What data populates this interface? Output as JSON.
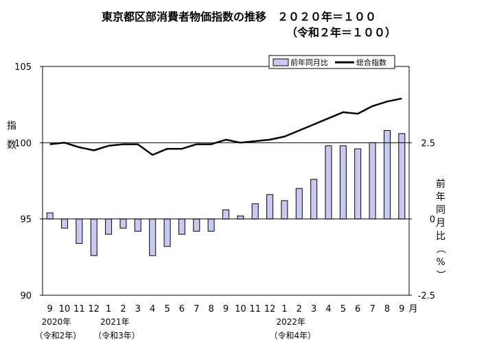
{
  "chart_data": {
    "type": "bar+line",
    "title": "東京都区部消費者物価指数の推移　２０２０年＝１００",
    "subtitle": "（令和２年＝１００）",
    "categories": [
      "9",
      "10",
      "11",
      "12",
      "1",
      "2",
      "3",
      "4",
      "5",
      "6",
      "7",
      "8",
      "9",
      "10",
      "11",
      "12",
      "1",
      "2",
      "3",
      "4",
      "5",
      "6",
      "7",
      "8",
      "9"
    ],
    "month_unit": "月",
    "year_labels": [
      {
        "at": 0,
        "year": "2020年",
        "era": "（令和2年）"
      },
      {
        "at": 4,
        "year": "2021年",
        "era": "（令和3年）"
      },
      {
        "at": 16,
        "year": "2022年",
        "era": "（令和4年）"
      }
    ],
    "left_axis": {
      "label": "指数",
      "ylim": [
        90,
        105
      ],
      "ticks": [
        "90",
        "95",
        "100",
        "105"
      ]
    },
    "right_axis": {
      "label": "前年同月比（%）",
      "ylim": [
        -2.5,
        5
      ],
      "ticks": [
        "-2.5",
        "0",
        "2.5"
      ]
    },
    "series": [
      {
        "name": "前年同月比",
        "kind": "bar",
        "axis": "right",
        "color": "#c8c8f0",
        "values": [
          0.2,
          -0.3,
          -0.8,
          -1.2,
          -0.5,
          -0.3,
          -0.4,
          -1.2,
          -0.9,
          -0.5,
          -0.4,
          -0.4,
          0.3,
          0.1,
          0.5,
          0.8,
          0.6,
          1.0,
          1.3,
          2.4,
          2.4,
          2.3,
          2.5,
          2.9,
          2.8
        ]
      },
      {
        "name": "総合指数",
        "kind": "line",
        "axis": "left",
        "color": "#000000",
        "values": [
          99.9,
          100.0,
          99.7,
          99.5,
          99.8,
          99.9,
          99.9,
          99.2,
          99.6,
          99.6,
          99.9,
          99.9,
          100.2,
          100.0,
          100.1,
          100.2,
          100.4,
          100.8,
          101.2,
          101.6,
          102.0,
          101.9,
          102.4,
          102.7,
          102.9
        ]
      }
    ],
    "legend_position": "top-right",
    "grid": false
  }
}
